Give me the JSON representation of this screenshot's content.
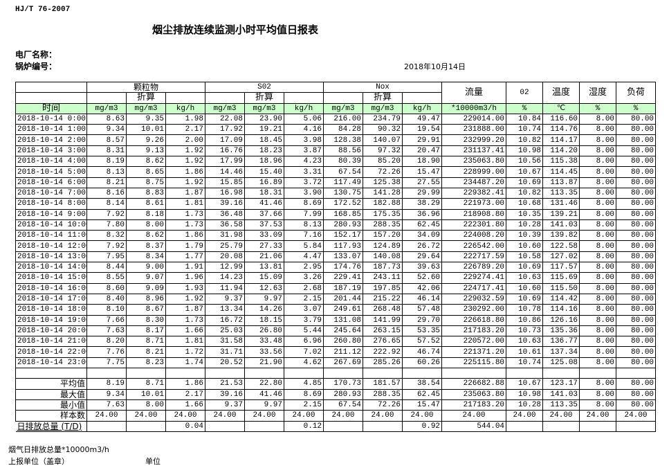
{
  "header": {
    "standard": "HJ/T  76-2007",
    "title": "烟尘排放连续监测小时平均值日报表",
    "plant_label": "电厂名称：",
    "boiler_label": "锅炉编号：",
    "date": "2018年10月14日"
  },
  "table": {
    "groups": {
      "pm": "颗粒物",
      "so2": "S02",
      "nox": "Nox",
      "flow": "流量",
      "o2": "02",
      "temp": "温度",
      "humidity": "湿度",
      "load": "负荷"
    },
    "converted": "折算",
    "time_header": "时间",
    "units": [
      "mg/m3",
      "mg/m3",
      "kg/h",
      "mg/m3",
      "mg/m3",
      "kg/h",
      "mg/m3",
      "mg/m3",
      "kg/h",
      "*10000m3/h",
      "%",
      "℃",
      "%",
      "%"
    ],
    "header_bg": "#ccffcc",
    "rows": [
      [
        "2018-10-14 0:00",
        "8.63",
        "9.35",
        "1.98",
        "22.08",
        "23.90",
        "5.06",
        "216.00",
        "234.79",
        "49.47",
        "229014.00",
        "10.84",
        "116.60",
        "8.00",
        "80.00"
      ],
      [
        "2018-10-14 1:00",
        "9.34",
        "10.01",
        "2.17",
        "17.92",
        "19.21",
        "4.16",
        "84.28",
        "90.32",
        "19.54",
        "231888.00",
        "10.74",
        "114.76",
        "8.00",
        "80.00"
      ],
      [
        "2018-10-14 2:00",
        "8.57",
        "9.26",
        "2.00",
        "17.09",
        "18.45",
        "3.98",
        "128.38",
        "140.07",
        "29.91",
        "232999.20",
        "10.82",
        "114.17",
        "8.00",
        "80.00"
      ],
      [
        "2018-10-14 3:00",
        "8.31",
        "9.13",
        "1.92",
        "16.76",
        "18.23",
        "3.87",
        "88.56",
        "97.32",
        "20.47",
        "231137.41",
        "10.98",
        "114.20",
        "8.00",
        "80.00"
      ],
      [
        "2018-10-14 4:00",
        "8.19",
        "8.62",
        "1.92",
        "17.99",
        "18.96",
        "4.23",
        "80.39",
        "85.20",
        "18.90",
        "235063.80",
        "10.56",
        "115.38",
        "8.00",
        "80.00"
      ],
      [
        "2018-10-14 5:00",
        "8.13",
        "8.65",
        "1.86",
        "14.46",
        "15.40",
        "3.31",
        "67.54",
        "72.26",
        "15.47",
        "228999.00",
        "10.67",
        "114.45",
        "8.00",
        "80.00"
      ],
      [
        "2018-10-14 6:00",
        "8.21",
        "8.75",
        "1.92",
        "15.85",
        "16.89",
        "3.72",
        "117.49",
        "125.38",
        "27.55",
        "234487.20",
        "10.69",
        "113.87",
        "8.00",
        "80.00"
      ],
      [
        "2018-10-14 7:00",
        "8.16",
        "8.83",
        "1.87",
        "16.98",
        "18.31",
        "3.90",
        "130.75",
        "141.28",
        "29.99",
        "229382.41",
        "10.82",
        "113.35",
        "8.00",
        "80.00"
      ],
      [
        "2018-10-14 8:00",
        "8.14",
        "8.61",
        "1.81",
        "39.16",
        "41.46",
        "8.69",
        "172.52",
        "182.88",
        "38.29",
        "221973.00",
        "10.68",
        "131.46",
        "8.00",
        "80.00"
      ],
      [
        "2018-10-14 9:00",
        "7.92",
        "8.18",
        "1.73",
        "36.48",
        "37.66",
        "7.99",
        "168.85",
        "175.35",
        "36.96",
        "218908.80",
        "10.35",
        "139.21",
        "8.00",
        "80.00"
      ],
      [
        "2018-10-14 10:00",
        "7.80",
        "8.00",
        "1.73",
        "36.58",
        "37.53",
        "8.13",
        "280.93",
        "288.35",
        "62.45",
        "222301.80",
        "10.28",
        "141.03",
        "8.00",
        "80.00"
      ],
      [
        "2018-10-14 11:00",
        "8.32",
        "8.62",
        "1.86",
        "31.98",
        "33.09",
        "7.16",
        "152.17",
        "157.20",
        "34.09",
        "224008.20",
        "10.39",
        "139.82",
        "8.00",
        "80.00"
      ],
      [
        "2018-10-14 12:00",
        "7.92",
        "8.37",
        "1.79",
        "25.79",
        "27.33",
        "5.84",
        "117.93",
        "124.89",
        "26.72",
        "226542.00",
        "10.60",
        "122.58",
        "8.00",
        "80.00"
      ],
      [
        "2018-10-14 13:00",
        "7.95",
        "8.34",
        "1.77",
        "20.08",
        "21.06",
        "4.47",
        "133.07",
        "140.08",
        "29.64",
        "222717.59",
        "10.58",
        "127.02",
        "8.00",
        "80.00"
      ],
      [
        "2018-10-14 14:00",
        "8.44",
        "9.00",
        "1.91",
        "12.99",
        "13.81",
        "2.95",
        "174.76",
        "187.73",
        "39.63",
        "226789.20",
        "10.69",
        "117.57",
        "8.00",
        "80.00"
      ],
      [
        "2018-10-14 15:00",
        "8.55",
        "9.07",
        "1.96",
        "14.23",
        "15.09",
        "3.26",
        "229.41",
        "243.11",
        "52.60",
        "229274.41",
        "10.63",
        "115.69",
        "8.00",
        "80.00"
      ],
      [
        "2018-10-14 16:00",
        "8.60",
        "9.09",
        "1.93",
        "11.94",
        "12.63",
        "2.68",
        "187.19",
        "197.85",
        "42.06",
        "224717.41",
        "10.60",
        "115.50",
        "8.00",
        "80.00"
      ],
      [
        "2018-10-14 17:00",
        "8.40",
        "8.96",
        "1.92",
        "9.37",
        "9.97",
        "2.15",
        "201.44",
        "215.22",
        "46.14",
        "229032.59",
        "10.69",
        "114.42",
        "8.00",
        "80.00"
      ],
      [
        "2018-10-14 18:00",
        "8.10",
        "8.67",
        "1.87",
        "13.34",
        "14.26",
        "3.07",
        "249.61",
        "268.48",
        "57.48",
        "230292.00",
        "10.78",
        "114.16",
        "8.00",
        "80.00"
      ],
      [
        "2018-10-14 19:00",
        "7.66",
        "8.30",
        "1.73",
        "16.72",
        "18.15",
        "3.79",
        "131.08",
        "141.99",
        "29.70",
        "226618.80",
        "10.86",
        "126.16",
        "8.00",
        "80.00"
      ],
      [
        "2018-10-14 20:00",
        "7.63",
        "8.17",
        "1.66",
        "25.03",
        "26.80",
        "5.44",
        "245.64",
        "263.15",
        "53.35",
        "217183.20",
        "10.73",
        "135.36",
        "8.00",
        "80.00"
      ],
      [
        "2018-10-14 21:00",
        "8.20",
        "8.71",
        "1.81",
        "31.58",
        "33.48",
        "6.96",
        "260.80",
        "276.65",
        "57.52",
        "220572.00",
        "10.63",
        "136.77",
        "8.00",
        "80.00"
      ],
      [
        "2018-10-14 22:00",
        "7.76",
        "8.21",
        "1.72",
        "31.71",
        "33.56",
        "7.02",
        "211.12",
        "222.92",
        "46.74",
        "221371.20",
        "10.61",
        "137.34",
        "8.00",
        "80.00"
      ],
      [
        "2018-10-14 23:00",
        "7.75",
        "8.23",
        "1.74",
        "20.52",
        "21.90",
        "4.62",
        "267.69",
        "285.26",
        "60.26",
        "225115.80",
        "10.74",
        "125.08",
        "8.00",
        "80.00"
      ]
    ],
    "summary": [
      [
        "平均值",
        "8.19",
        "8.71",
        "1.86",
        "21.53",
        "22.80",
        "4.85",
        "170.73",
        "181.57",
        "38.54",
        "226682.88",
        "10.67",
        "123.17",
        "8.00",
        "80.00"
      ],
      [
        "最大值",
        "9.34",
        "10.01",
        "2.17",
        "39.16",
        "41.46",
        "8.69",
        "280.93",
        "288.35",
        "62.45",
        "235063.80",
        "10.98",
        "141.03",
        "8.00",
        "80.00"
      ],
      [
        "最小值",
        "7.63",
        "8.00",
        "1.66",
        "9.37",
        "9.97",
        "2.15",
        "67.54",
        "72.26",
        "15.47",
        "217183.20",
        "10.28",
        "113.35",
        "8.00",
        "80.00"
      ],
      [
        "样本数",
        "24.00",
        "24.00",
        "24.00",
        "24.00",
        "24.00",
        "24.00",
        "24.00",
        "24.00",
        "24.00",
        "24.00",
        "24.00",
        "24.00",
        "24.00",
        "24.00"
      ]
    ],
    "daily_total": [
      "日排放总量 (T/D)",
      "",
      "",
      "0.04",
      "",
      "",
      "0.12",
      "",
      "",
      "0.92",
      "544.04",
      "",
      "",
      "",
      ""
    ]
  },
  "footer": {
    "flue_gas_total": "烟气日排放总量*10000m3/h",
    "reporting_unit": "上报单位（盖章）",
    "unit": "单位"
  }
}
